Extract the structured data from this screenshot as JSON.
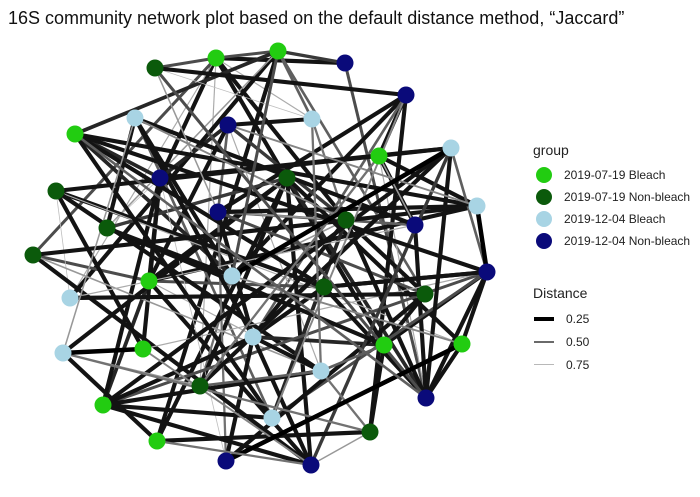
{
  "title": "16S community network plot based on the default distance method, “Jaccard”",
  "legend": {
    "group_title": "group",
    "groups": [
      {
        "label": "2019-07-19 Bleach",
        "color": "#22cc11"
      },
      {
        "label": "2019-07-19 Non-bleach",
        "color": "#0b5a0b"
      },
      {
        "label": "2019-12-04 Bleach",
        "color": "#a8d4e4"
      },
      {
        "label": "2019-12-04 Non-bleach",
        "color": "#0a0a7a"
      }
    ],
    "distance_title": "Distance",
    "distances": [
      {
        "label": "0.25",
        "value": 0.25
      },
      {
        "label": "0.50",
        "value": 0.5
      },
      {
        "label": "0.75",
        "value": 0.75
      }
    ]
  },
  "network": {
    "nodes": [
      {
        "g": 0
      },
      {
        "g": 0
      },
      {
        "g": 0
      },
      {
        "g": 0
      },
      {
        "g": 0
      },
      {
        "g": 0
      },
      {
        "g": 0
      },
      {
        "g": 0
      },
      {
        "g": 0
      },
      {
        "g": 0
      },
      {
        "g": 1
      },
      {
        "g": 1
      },
      {
        "g": 1
      },
      {
        "g": 1
      },
      {
        "g": 1
      },
      {
        "g": 1
      },
      {
        "g": 1
      },
      {
        "g": 1
      },
      {
        "g": 1
      },
      {
        "g": 1
      },
      {
        "g": 2
      },
      {
        "g": 2
      },
      {
        "g": 2
      },
      {
        "g": 2
      },
      {
        "g": 2
      },
      {
        "g": 2
      },
      {
        "g": 2
      },
      {
        "g": 2
      },
      {
        "g": 2
      },
      {
        "g": 2
      },
      {
        "g": 3
      },
      {
        "g": 3
      },
      {
        "g": 3
      },
      {
        "g": 3
      },
      {
        "g": 3
      },
      {
        "g": 3
      },
      {
        "g": 3
      },
      {
        "g": 3
      },
      {
        "g": 3
      },
      {
        "g": 3
      }
    ],
    "edges": [
      [
        10,
        0,
        0.45
      ],
      [
        0,
        30,
        0.3
      ],
      [
        30,
        37,
        0.45
      ],
      [
        0,
        1,
        0.45
      ],
      [
        1,
        30,
        0.4
      ],
      [
        0,
        14,
        0.3
      ],
      [
        0,
        5,
        0.3
      ],
      [
        0,
        33,
        0.3
      ],
      [
        0,
        25,
        0.7
      ],
      [
        0,
        21,
        0.7
      ],
      [
        0,
        15,
        0.45
      ],
      [
        0,
        18,
        0.7
      ],
      [
        1,
        25,
        0.3
      ],
      [
        1,
        17,
        0.5
      ],
      [
        1,
        21,
        0.5
      ],
      [
        1,
        8,
        0.3
      ],
      [
        1,
        9,
        0.35
      ],
      [
        1,
        13,
        0.65
      ],
      [
        2,
        31,
        0.3
      ],
      [
        2,
        23,
        0.3
      ],
      [
        2,
        37,
        0.7
      ],
      [
        31,
        24,
        0.3
      ],
      [
        31,
        19,
        0.3
      ],
      [
        31,
        26,
        0.5
      ],
      [
        31,
        34,
        0.3
      ],
      [
        20,
        13,
        0.3
      ],
      [
        20,
        24,
        0.3
      ],
      [
        20,
        29,
        0.5
      ],
      [
        32,
        21,
        0.3
      ],
      [
        32,
        33,
        0.35
      ],
      [
        32,
        34,
        0.5
      ],
      [
        32,
        3,
        0.3
      ],
      [
        32,
        14,
        0.4
      ],
      [
        32,
        28,
        0.7
      ],
      [
        3,
        11,
        0.3
      ],
      [
        3,
        33,
        0.3
      ],
      [
        3,
        28,
        0.7
      ],
      [
        3,
        29,
        0.65
      ],
      [
        3,
        39,
        0.3
      ],
      [
        3,
        7,
        0.35
      ],
      [
        3,
        16,
        0.45
      ],
      [
        3,
        23,
        0.3
      ],
      [
        3,
        15,
        0.45
      ],
      [
        21,
        14,
        0.55
      ],
      [
        24,
        14,
        0.65
      ],
      [
        24,
        9,
        0.35
      ],
      [
        24,
        18,
        0.55
      ],
      [
        11,
        37,
        0.35
      ],
      [
        11,
        6,
        0.3
      ],
      [
        11,
        27,
        0.3
      ],
      [
        11,
        39,
        0.3
      ],
      [
        11,
        8,
        0.3
      ],
      [
        11,
        13,
        0.4
      ],
      [
        11,
        18,
        0.3
      ],
      [
        33,
        22,
        0.3
      ],
      [
        33,
        4,
        0.3
      ],
      [
        33,
        7,
        0.3
      ],
      [
        33,
        9,
        0.35
      ],
      [
        33,
        13,
        0.75
      ],
      [
        33,
        38,
        0.75
      ],
      [
        12,
        25,
        0.75
      ],
      [
        12,
        4,
        0.3
      ],
      [
        12,
        16,
        0.3
      ],
      [
        12,
        22,
        0.3
      ],
      [
        12,
        6,
        0.7
      ],
      [
        12,
        28,
        0.3
      ],
      [
        5,
        17,
        0.3
      ],
      [
        5,
        26,
        0.35
      ],
      [
        5,
        36,
        0.3
      ],
      [
        5,
        19,
        0.3
      ],
      [
        34,
        35,
        0.5
      ],
      [
        34,
        38,
        0.55
      ],
      [
        34,
        14,
        0.65
      ],
      [
        34,
        23,
        0.3
      ],
      [
        34,
        26,
        0.3
      ],
      [
        34,
        17,
        0.45
      ],
      [
        14,
        17,
        0.3
      ],
      [
        14,
        37,
        0.3
      ],
      [
        14,
        29,
        0.35
      ],
      [
        14,
        26,
        0.3
      ],
      [
        15,
        39,
        0.3
      ],
      [
        15,
        23,
        0.3
      ],
      [
        15,
        28,
        0.65
      ],
      [
        35,
        37,
        0.3
      ],
      [
        35,
        2,
        0.3
      ],
      [
        35,
        25,
        0.7
      ],
      [
        35,
        20,
        0.3
      ],
      [
        36,
        37,
        0.3
      ],
      [
        36,
        22,
        0.5
      ],
      [
        36,
        16,
        0.3
      ],
      [
        36,
        7,
        0.45
      ],
      [
        36,
        6,
        0.3
      ],
      [
        36,
        4,
        0.7
      ],
      [
        36,
        29,
        0.45
      ],
      [
        16,
        26,
        0.3
      ],
      [
        16,
        9,
        0.3
      ],
      [
        16,
        36,
        0.3
      ],
      [
        17,
        38,
        0.3
      ],
      [
        17,
        25,
        0.3
      ],
      [
        37,
        6,
        0.3
      ],
      [
        37,
        16,
        0.3
      ],
      [
        37,
        22,
        0.3
      ],
      [
        38,
        6,
        0.3
      ],
      [
        38,
        26,
        0.3
      ],
      [
        26,
        28,
        0.3
      ],
      [
        26,
        7,
        0.3
      ],
      [
        26,
        22,
        0.35
      ],
      [
        26,
        39,
        0.3
      ],
      [
        26,
        20,
        0.3
      ],
      [
        22,
        7,
        0.3
      ],
      [
        22,
        18,
        0.3
      ],
      [
        22,
        39,
        0.4
      ],
      [
        28,
        7,
        0.3
      ],
      [
        28,
        18,
        0.5
      ],
      [
        28,
        19,
        0.55
      ],
      [
        7,
        39,
        0.3
      ],
      [
        7,
        29,
        0.3
      ],
      [
        18,
        27,
        0.65
      ],
      [
        8,
        19,
        0.3
      ],
      [
        8,
        27,
        0.3
      ],
      [
        9,
        29,
        0.3
      ],
      [
        9,
        36,
        0.3
      ],
      [
        10,
        21,
        0.75
      ],
      [
        10,
        37,
        0.45
      ],
      [
        10,
        31,
        0.3
      ],
      [
        10,
        34,
        0.65
      ],
      [
        13,
        5,
        0.3
      ],
      [
        13,
        24,
        0.3
      ],
      [
        23,
        9,
        0.3
      ],
      [
        19,
        39,
        0.65
      ],
      [
        27,
        20,
        0.65
      ],
      [
        2,
        35,
        0.65
      ],
      [
        24,
        6,
        0.6
      ],
      [
        39,
        4,
        0.6
      ],
      [
        23,
        32,
        0.6
      ],
      [
        19,
        27,
        0.55
      ],
      [
        29,
        31,
        0.6
      ],
      [
        14,
        20,
        0.6
      ],
      [
        18,
        2,
        0.55
      ],
      [
        28,
        21,
        0.55
      ],
      [
        22,
        24,
        0.2
      ],
      [
        27,
        4,
        0.1
      ],
      [
        36,
        23,
        0.15
      ],
      [
        6,
        38,
        0.12
      ],
      [
        8,
        39,
        0.55
      ],
      [
        5,
        28,
        0.5
      ],
      [
        1,
        24,
        0.45
      ],
      [
        37,
        9,
        0.5
      ]
    ]
  }
}
